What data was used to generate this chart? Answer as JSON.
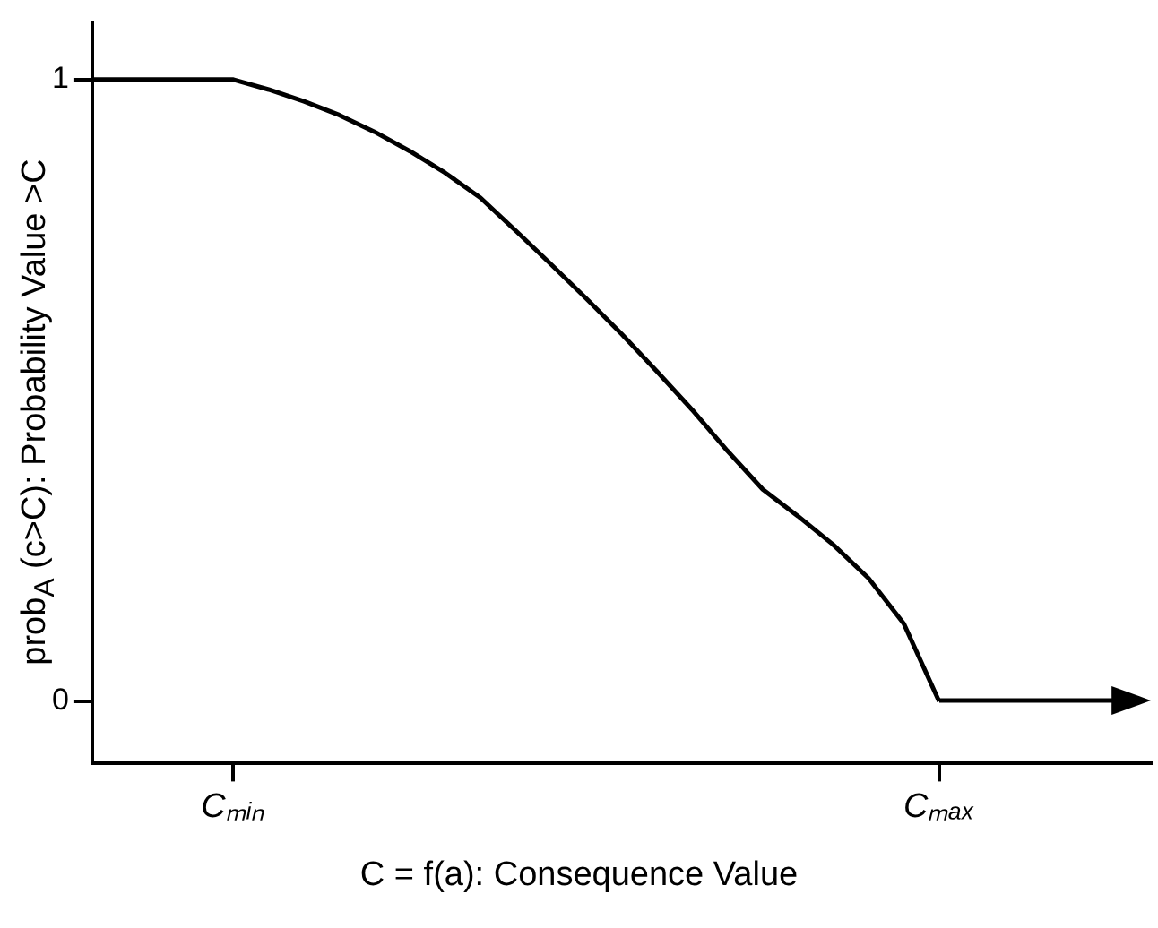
{
  "chart_data": {
    "type": "line",
    "xlabel": "C = f(a): Consequence Value",
    "ylabel": "prob$_{A}$ (c>C): Probability Value >C",
    "categories": [
      null,
      null,
      null,
      null,
      "Cₘᵢₙ",
      null,
      null,
      null,
      null,
      null,
      null,
      null,
      null,
      null,
      null,
      null,
      null,
      null,
      null,
      null,
      null,
      null,
      null,
      null,
      "Cₘₐₓ",
      null,
      null,
      null,
      null,
      null,
      null
    ],
    "series": [
      {
        "color": "#000000",
        "values": [
          1,
          1,
          1,
          1,
          1,
          0.984,
          0.965,
          0.943,
          0.916,
          0.885,
          0.85,
          0.81,
          0.757,
          0.703,
          0.648,
          0.591,
          0.531,
          0.469,
          0.403,
          0.341,
          0.298,
          0.252,
          0.198,
          0.125,
          0,
          null,
          null,
          null,
          null,
          null,
          null
        ]
      }
    ],
    "ylim": [
      -0.1,
      1.09
    ],
    "yticks": [
      0,
      1
    ],
    "grid": false,
    "legend": false,
    "marker": "none",
    "line_style": "solid"
  }
}
